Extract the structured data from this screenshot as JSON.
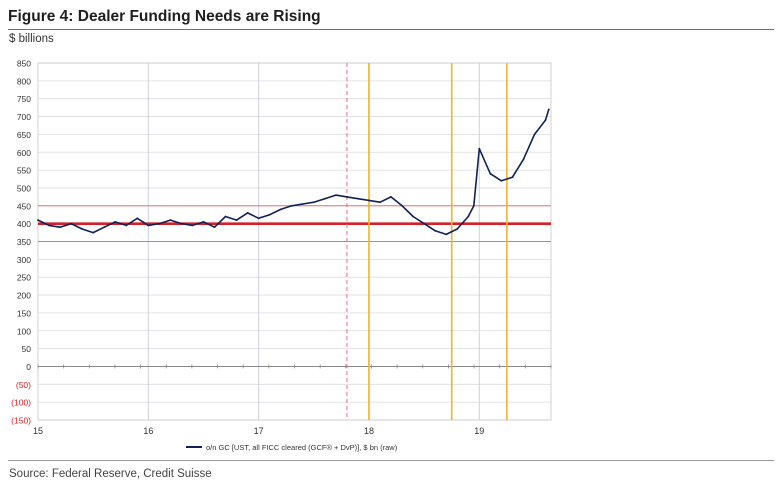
{
  "figure": {
    "title": "Figure 4: Dealer Funding Needs are Rising",
    "units": "$ billions",
    "source": "Source: Federal Reserve, Credit Suisse"
  },
  "colors": {
    "series": "#0f2257",
    "baseline": "#d62027",
    "band": "#e8707a",
    "event_line": "#f2b22a",
    "dashed_marker": "#e8707a",
    "grid": "#dcdcdc",
    "year_line": "#cdd0e2",
    "negative_tick": "#d62027"
  },
  "chart_data": {
    "type": "line",
    "title": "",
    "xlabel": "",
    "ylabel": "$ billions",
    "xlim": [
      15,
      19.65
    ],
    "ylim": [
      -150,
      850
    ],
    "y_ticks": [
      {
        "value": 850,
        "label": "850",
        "negative": false
      },
      {
        "value": 800,
        "label": "800",
        "negative": false
      },
      {
        "value": 750,
        "label": "750",
        "negative": false
      },
      {
        "value": 700,
        "label": "700",
        "negative": false
      },
      {
        "value": 650,
        "label": "650",
        "negative": false
      },
      {
        "value": 600,
        "label": "600",
        "negative": false
      },
      {
        "value": 550,
        "label": "550",
        "negative": false
      },
      {
        "value": 500,
        "label": "500",
        "negative": false
      },
      {
        "value": 450,
        "label": "450",
        "negative": false
      },
      {
        "value": 400,
        "label": "400",
        "negative": false
      },
      {
        "value": 350,
        "label": "350",
        "negative": false
      },
      {
        "value": 300,
        "label": "300",
        "negative": false
      },
      {
        "value": 250,
        "label": "250",
        "negative": false
      },
      {
        "value": 200,
        "label": "200",
        "negative": false
      },
      {
        "value": 150,
        "label": "150",
        "negative": false
      },
      {
        "value": 100,
        "label": "100",
        "negative": false
      },
      {
        "value": 50,
        "label": "50",
        "negative": false
      },
      {
        "value": 0,
        "label": "0",
        "negative": false
      },
      {
        "value": -50,
        "label": "(50)",
        "negative": true
      },
      {
        "value": -100,
        "label": "(100)",
        "negative": true
      },
      {
        "value": -150,
        "label": "(150)",
        "negative": true
      }
    ],
    "x_ticks": [
      {
        "value": 15,
        "label": "15"
      },
      {
        "value": 16,
        "label": "16"
      },
      {
        "value": 17,
        "label": "17"
      },
      {
        "value": 18,
        "label": "18"
      },
      {
        "value": 19,
        "label": "19"
      }
    ],
    "reference_lines": [
      {
        "y": 400,
        "style": "bold"
      },
      {
        "y": 450,
        "style": "thin"
      },
      {
        "y": 350,
        "style": "thin"
      }
    ],
    "event_lines": [
      {
        "x": 17.8,
        "style": "dashed"
      },
      {
        "x": 18.0,
        "style": "solid"
      },
      {
        "x": 18.75,
        "style": "solid"
      },
      {
        "x": 19.25,
        "style": "solid"
      }
    ],
    "legend": {
      "position": "bottom-center"
    },
    "series": [
      {
        "name": "o/n GC [UST, all FICC cleared (GCF® + DvP)], $ bn (raw)",
        "x": [
          15.0,
          15.1,
          15.2,
          15.3,
          15.4,
          15.5,
          15.6,
          15.7,
          15.8,
          15.9,
          16.0,
          16.1,
          16.2,
          16.3,
          16.4,
          16.5,
          16.6,
          16.7,
          16.8,
          16.9,
          17.0,
          17.1,
          17.2,
          17.3,
          17.4,
          17.5,
          17.6,
          17.7,
          17.8,
          17.9,
          18.0,
          18.1,
          18.2,
          18.3,
          18.4,
          18.5,
          18.6,
          18.7,
          18.8,
          18.9,
          18.95,
          19.0,
          19.1,
          19.2,
          19.3,
          19.4,
          19.5,
          19.6,
          19.63
        ],
        "y": [
          410,
          395,
          390,
          400,
          385,
          375,
          390,
          405,
          395,
          415,
          395,
          400,
          410,
          400,
          395,
          405,
          390,
          420,
          410,
          430,
          415,
          425,
          440,
          450,
          455,
          460,
          470,
          480,
          475,
          470,
          465,
          460,
          475,
          450,
          420,
          400,
          380,
          370,
          385,
          420,
          450,
          610,
          540,
          520,
          530,
          580,
          650,
          690,
          720
        ]
      }
    ]
  }
}
